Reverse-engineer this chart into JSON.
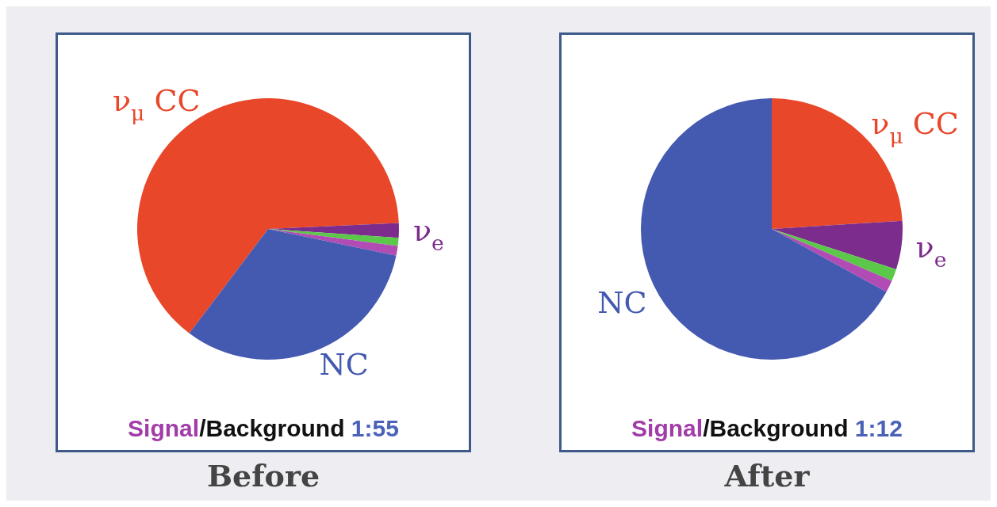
{
  "chart_data": [
    {
      "type": "pie",
      "title": "Before",
      "categories": [
        "ν$_{μ}$ CC",
        "ν$_{e}$",
        null,
        null,
        "NC"
      ],
      "values": [
        64,
        1.8,
        1,
        1.2,
        32
      ],
      "colors": [
        "#e8472a",
        "#7b2c8c",
        "#5cc84a",
        "#b04cb4",
        "#4459b0"
      ],
      "annotations": [
        "Signal/Background 1:55"
      ]
    },
    {
      "type": "pie",
      "title": "After",
      "categories": [
        "ν$_{μ}$ CC",
        "ν$_{e}$",
        null,
        null,
        "NC"
      ],
      "values": [
        24,
        6,
        1.5,
        1.5,
        67
      ],
      "colors": [
        "#e8472a",
        "#7b2c8c",
        "#5cc84a",
        "#b04cb4",
        "#4459b0"
      ],
      "annotations": [
        "Signal/Background 1:12"
      ]
    }
  ]
}
